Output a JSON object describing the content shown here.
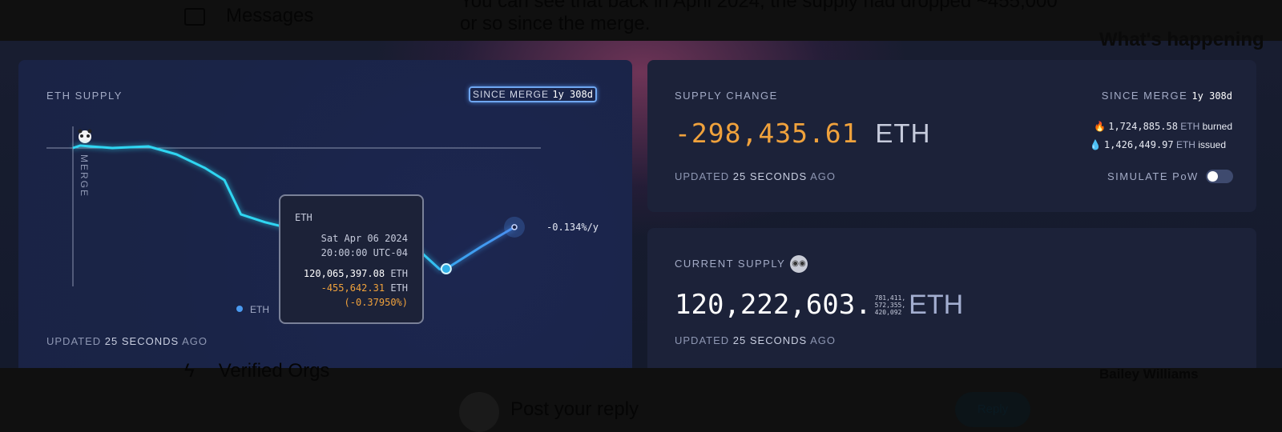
{
  "background": {
    "sidebar_messages": "Messages",
    "sidebar_verified": "Verified Orgs",
    "post_text_line1": "You can see that back in April 2024, the supply had dropped ~455,000",
    "post_text_line2": "or so since the merge.",
    "whats_happening": "What's happening",
    "author": "Bailey Williams",
    "reply_placeholder": "Post your reply",
    "reply_button": "Reply"
  },
  "supply_chart": {
    "title": "ETH SUPPLY",
    "range_label": "SINCE MERGE",
    "range_value": "1y 308d",
    "merge_label": "MERGE",
    "rate_label": "-0.134%/y",
    "legend": "ETH",
    "updated_prefix": "UPDATED",
    "updated_value": "25 SECONDS",
    "updated_suffix": "AGO",
    "tooltip": {
      "unit": "ETH",
      "date": "Sat Apr 06 2024",
      "time": "20:00:00 UTC-04",
      "supply": "120,065,397.08",
      "change": "-455,642.31",
      "pct": "(-0.37950%)"
    }
  },
  "supply_change": {
    "title": "SUPPLY CHANGE",
    "value": "-298,435.61",
    "unit": "ETH",
    "range_label": "SINCE MERGE",
    "range_value": "1y 308d",
    "burned": "1,724,885.58",
    "burned_label": "burned",
    "issued": "1,426,449.97",
    "issued_label": "issued",
    "simulate_pow": "SIMULATE PoW",
    "simulate_pow_on": false,
    "updated_prefix": "UPDATED",
    "updated_value": "25 SECONDS",
    "updated_suffix": "AGO"
  },
  "current_supply": {
    "title": "CURRENT SUPPLY",
    "integer": "120,222,603.",
    "decimals": [
      "781,411,",
      "572,355,",
      "420,092"
    ],
    "unit": "ETH",
    "updated_prefix": "UPDATED",
    "updated_value": "25 SECONDS",
    "updated_suffix": "AGO"
  },
  "colors": {
    "line_start": "#2fd6f2",
    "line_end": "#4a8ef0",
    "negative": "#f0a23c",
    "accent": "#6fa6f0"
  },
  "chart_data": {
    "type": "line",
    "series": [
      {
        "name": "ETH",
        "points": [
          [
            "2022-09-15",
            120521039
          ],
          [
            "2022-09-26",
            120530000
          ],
          [
            "2022-11-14",
            120521000
          ],
          [
            "2023-01-08",
            120527000
          ],
          [
            "2023-02-20",
            120497000
          ],
          [
            "2023-04-04",
            120446000
          ],
          [
            "2023-05-04",
            120400000
          ],
          [
            "2023-05-29",
            120271000
          ],
          [
            "2023-07-05",
            120241000
          ],
          [
            "2023-09-04",
            120204000
          ],
          [
            "2023-12-11",
            120174000
          ],
          [
            "2024-02-22",
            120141000
          ],
          [
            "2024-03-27",
            120064000
          ],
          [
            "2024-04-06",
            120065397
          ],
          [
            "2024-05-30",
            120150000
          ],
          [
            "2024-07-19",
            120222604
          ]
        ]
      }
    ],
    "baseline": 120521039,
    "highlight": "2024-04-06",
    "grid": false
  }
}
